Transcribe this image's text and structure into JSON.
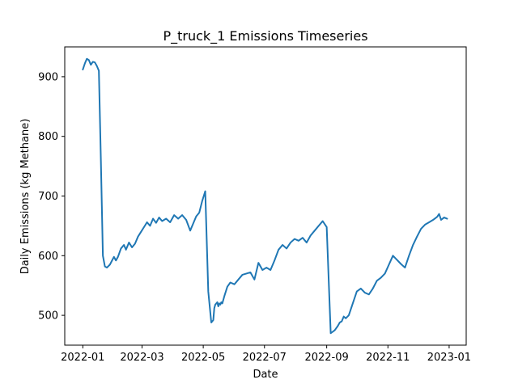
{
  "chart_data": {
    "type": "line",
    "title": "P_truck_1 Emissions Timeseries",
    "xlabel": "Date",
    "ylabel": "Daily Emissions (kg Methane)",
    "xlim": [
      "2021-12-14",
      "2023-01-18"
    ],
    "ylim": [
      450,
      950
    ],
    "x_ticks": [
      "2022-01-01",
      "2022-03-01",
      "2022-05-01",
      "2022-07-01",
      "2022-09-01",
      "2022-11-01",
      "2023-01-01"
    ],
    "x_tick_labels": [
      "2022-01",
      "2022-03",
      "2022-05",
      "2022-07",
      "2022-09",
      "2022-11",
      "2023-01"
    ],
    "y_ticks": [
      500,
      600,
      700,
      800,
      900
    ],
    "y_tick_labels": [
      "500",
      "600",
      "700",
      "800",
      "900"
    ],
    "grid": false,
    "line_color": "#1f77b4",
    "series": [
      {
        "x": [
          "2022-01-01",
          "2022-01-03",
          "2022-01-05",
          "2022-01-07",
          "2022-01-09",
          "2022-01-11",
          "2022-01-13",
          "2022-01-15",
          "2022-01-17",
          "2022-01-19",
          "2022-01-21",
          "2022-01-23",
          "2022-01-25",
          "2022-01-28",
          "2022-02-01",
          "2022-02-03",
          "2022-02-05",
          "2022-02-08",
          "2022-02-11",
          "2022-02-13",
          "2022-02-16",
          "2022-02-19",
          "2022-02-22",
          "2022-02-25",
          "2022-02-28",
          "2022-03-03",
          "2022-03-06",
          "2022-03-09",
          "2022-03-12",
          "2022-03-15",
          "2022-03-18",
          "2022-03-21",
          "2022-03-25",
          "2022-03-29",
          "2022-04-02",
          "2022-04-06",
          "2022-04-10",
          "2022-04-14",
          "2022-04-18",
          "2022-04-21",
          "2022-04-24",
          "2022-04-27",
          "2022-04-30",
          "2022-05-03",
          "2022-05-06",
          "2022-05-09",
          "2022-05-11",
          "2022-05-12",
          "2022-05-13",
          "2022-05-14",
          "2022-05-15",
          "2022-05-16",
          "2022-05-17",
          "2022-05-18",
          "2022-05-19",
          "2022-05-20",
          "2022-05-22",
          "2022-05-25",
          "2022-05-28",
          "2022-06-01",
          "2022-06-05",
          "2022-06-09",
          "2022-06-13",
          "2022-06-17",
          "2022-06-21",
          "2022-06-25",
          "2022-06-29",
          "2022-07-03",
          "2022-07-07",
          "2022-07-11",
          "2022-07-15",
          "2022-07-19",
          "2022-07-23",
          "2022-07-27",
          "2022-07-31",
          "2022-08-04",
          "2022-08-08",
          "2022-08-12",
          "2022-08-16",
          "2022-08-20",
          "2022-08-24",
          "2022-08-28",
          "2022-09-01",
          "2022-09-05",
          "2022-09-09",
          "2022-09-12",
          "2022-09-14",
          "2022-09-16",
          "2022-09-17",
          "2022-09-18",
          "2022-09-20",
          "2022-09-23",
          "2022-09-27",
          "2022-10-01",
          "2022-10-05",
          "2022-10-09",
          "2022-10-13",
          "2022-10-17",
          "2022-10-21",
          "2022-10-25",
          "2022-10-29",
          "2022-11-02",
          "2022-11-06",
          "2022-11-10",
          "2022-11-14",
          "2022-11-18",
          "2022-11-22",
          "2022-11-26",
          "2022-11-30",
          "2022-12-04",
          "2022-12-08",
          "2022-12-12",
          "2022-12-16",
          "2022-12-20",
          "2022-12-22",
          "2022-12-24",
          "2022-12-27",
          "2022-12-30"
        ],
        "y": [
          912,
          922,
          930,
          928,
          920,
          925,
          924,
          918,
          910,
          760,
          600,
          582,
          580,
          585,
          598,
          592,
          598,
          612,
          618,
          610,
          622,
          614,
          620,
          632,
          640,
          648,
          656,
          650,
          662,
          655,
          664,
          658,
          662,
          656,
          668,
          662,
          668,
          660,
          642,
          654,
          666,
          672,
          692,
          708,
          540,
          488,
          492,
          512,
          518,
          520,
          522,
          515,
          520,
          518,
          522,
          520,
          532,
          548,
          555,
          552,
          560,
          568,
          570,
          572,
          560,
          588,
          576,
          580,
          576,
          592,
          610,
          618,
          612,
          622,
          628,
          625,
          630,
          622,
          634,
          642,
          650,
          658,
          648,
          470,
          475,
          482,
          488,
          490,
          494,
          498,
          495,
          500,
          520,
          540,
          545,
          538,
          535,
          545,
          558,
          563,
          570,
          585,
          600,
          593,
          586,
          580,
          600,
          618,
          632,
          645,
          652,
          656,
          660,
          665,
          670,
          660,
          664,
          662
        ]
      }
    ]
  }
}
